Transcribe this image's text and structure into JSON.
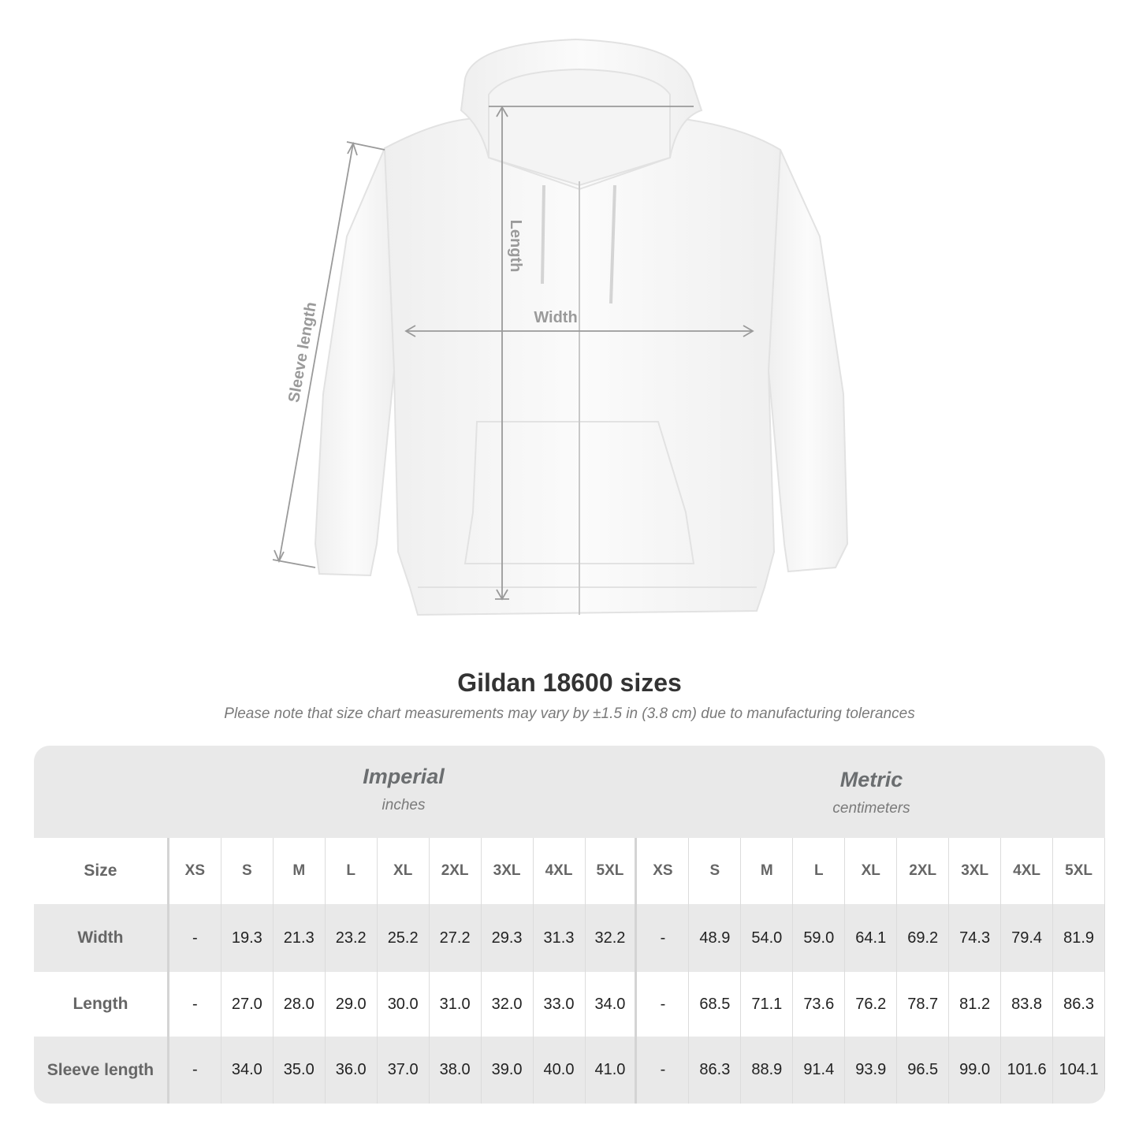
{
  "diagram": {
    "labels": {
      "length": "Length",
      "width": "Width",
      "sleeve": "Sleeve length"
    },
    "line_color": "#9a9a9a"
  },
  "title": "Gildan 18600 sizes",
  "subtitle": "Please note that size chart measurements may vary by ±1.5 in (3.8 cm) due to manufacturing tolerances",
  "table": {
    "imperial": {
      "name": "Imperial",
      "unit": "inches"
    },
    "metric": {
      "name": "Metric",
      "unit": "centimeters"
    },
    "size_label": "Size",
    "sizes": [
      "XS",
      "S",
      "M",
      "L",
      "XL",
      "2XL",
      "3XL",
      "4XL",
      "5XL"
    ],
    "rows": [
      {
        "label": "Width",
        "imperial": [
          "-",
          "19.3",
          "21.3",
          "23.2",
          "25.2",
          "27.2",
          "29.3",
          "31.3",
          "32.2"
        ],
        "metric": [
          "-",
          "48.9",
          "54.0",
          "59.0",
          "64.1",
          "69.2",
          "74.3",
          "79.4",
          "81.9"
        ]
      },
      {
        "label": "Length",
        "imperial": [
          "-",
          "27.0",
          "28.0",
          "29.0",
          "30.0",
          "31.0",
          "32.0",
          "33.0",
          "34.0"
        ],
        "metric": [
          "-",
          "68.5",
          "71.1",
          "73.6",
          "76.2",
          "78.7",
          "81.2",
          "83.8",
          "86.3"
        ]
      },
      {
        "label": "Sleeve length",
        "imperial": [
          "-",
          "34.0",
          "35.0",
          "36.0",
          "37.0",
          "38.0",
          "39.0",
          "40.0",
          "41.0"
        ],
        "metric": [
          "-",
          "86.3",
          "88.9",
          "91.4",
          "93.9",
          "96.5",
          "99.0",
          "101.6",
          "104.1"
        ]
      }
    ],
    "colors": {
      "header_bg": "#e9e9e9",
      "text": "#222222",
      "label": "#666666"
    }
  }
}
